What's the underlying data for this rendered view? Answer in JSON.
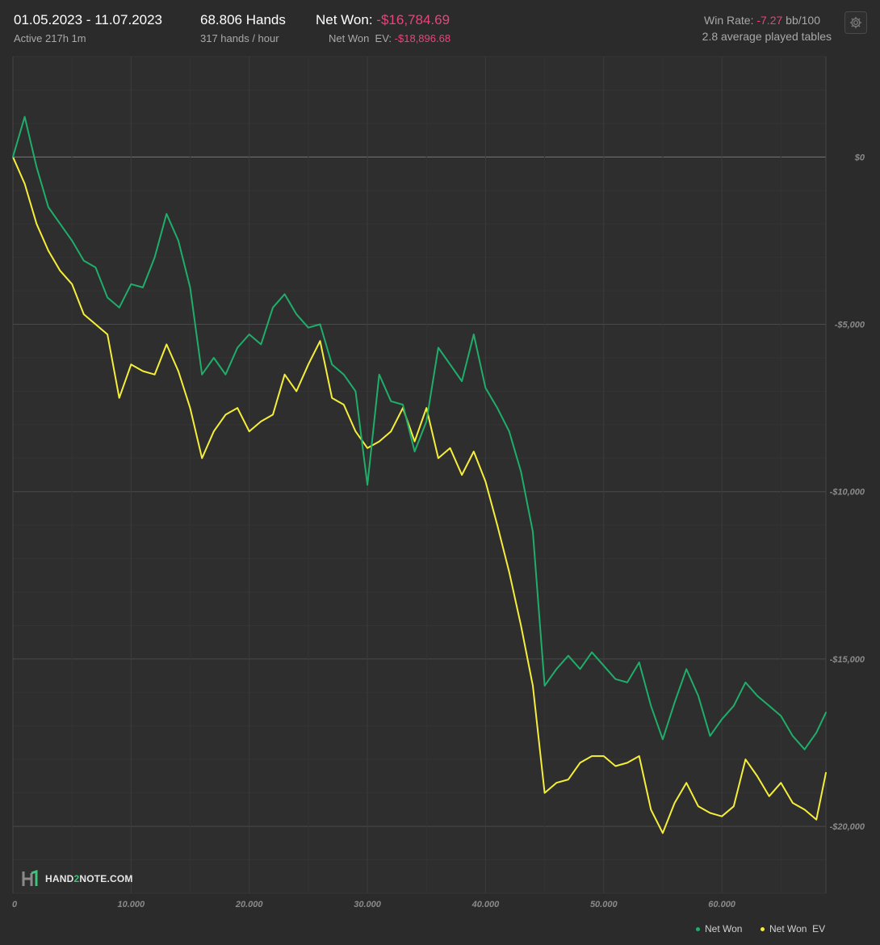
{
  "header": {
    "date_range": "01.05.2023 - 11.07.2023",
    "active_time": "Active 217h 1m",
    "hands": "68.806 Hands",
    "hands_per_hour": "317 hands / hour",
    "net_won_label": "Net Won:",
    "net_won_value": "-$16,784.69",
    "net_won_ev_label": "Net Won  EV:",
    "net_won_ev_value": "-$18,896.68",
    "win_rate_label": "Win Rate:",
    "win_rate_value": "-7.27",
    "win_rate_unit": "bb/100",
    "avg_tables": "2.8 average played tables"
  },
  "settings_icon": "gear-icon",
  "logo": {
    "brand_prefix": "HAND",
    "brand_two": "2",
    "brand_suffix": "NOTE.COM"
  },
  "colors": {
    "background": "#2b2b2b",
    "net_won": "#1fae6a",
    "net_won_ev": "#f5ee3a",
    "negative": "#e8457a",
    "grid": "#3a3a3a",
    "zero_line": "#777777"
  },
  "chart_data": {
    "type": "line",
    "xlim": [
      0,
      68806
    ],
    "ylim": [
      -22000,
      3000
    ],
    "x_ticks": [
      0,
      10000,
      20000,
      30000,
      40000,
      50000,
      60000
    ],
    "x_tick_labels": [
      "0",
      "10.000",
      "20.000",
      "30.000",
      "40.000",
      "50.000",
      "60.000"
    ],
    "y_ticks": [
      0,
      -5000,
      -10000,
      -15000,
      -20000
    ],
    "y_tick_labels": [
      "$0",
      "-$5,000",
      "-$10,000",
      "-$15,000",
      "-$20,000"
    ],
    "grid": true,
    "legend_position": "bottom-right",
    "x": [
      0,
      1000,
      2000,
      3000,
      4000,
      5000,
      6000,
      7000,
      8000,
      9000,
      10000,
      11000,
      12000,
      13000,
      14000,
      15000,
      16000,
      17000,
      18000,
      19000,
      20000,
      21000,
      22000,
      23000,
      24000,
      25000,
      26000,
      27000,
      28000,
      29000,
      30000,
      31000,
      32000,
      33000,
      34000,
      35000,
      36000,
      37000,
      38000,
      39000,
      40000,
      41000,
      42000,
      43000,
      44000,
      45000,
      46000,
      47000,
      48000,
      49000,
      50000,
      51000,
      52000,
      53000,
      54000,
      55000,
      56000,
      57000,
      58000,
      59000,
      60000,
      61000,
      62000,
      63000,
      64000,
      65000,
      66000,
      67000,
      68000,
      68806
    ],
    "series": [
      {
        "name": "Net Won",
        "values": [
          0,
          1200,
          -300,
          -1500,
          -2000,
          -2500,
          -3100,
          -3300,
          -4200,
          -4500,
          -3800,
          -3900,
          -3000,
          -1700,
          -2500,
          -3900,
          -6500,
          -6000,
          -6500,
          -5700,
          -5300,
          -5600,
          -4500,
          -4100,
          -4700,
          -5100,
          -5000,
          -6200,
          -6500,
          -7000,
          -9800,
          -6500,
          -7300,
          -7400,
          -8800,
          -7900,
          -5700,
          -6200,
          -6700,
          -5300,
          -6900,
          -7500,
          -8200,
          -9400,
          -11200,
          -15800,
          -15300,
          -14900,
          -15300,
          -14800,
          -15200,
          -15600,
          -15700,
          -15100,
          -16400,
          -17400,
          -16300,
          -15300,
          -16100,
          -17300,
          -16800,
          -16400,
          -15700,
          -16100,
          -16400,
          -16700,
          -17300,
          -17700,
          -17200,
          -16600
        ]
      },
      {
        "name": "Net Won  EV",
        "values": [
          0,
          -800,
          -2000,
          -2800,
          -3400,
          -3800,
          -4700,
          -5000,
          -5300,
          -7200,
          -6200,
          -6400,
          -6500,
          -5600,
          -6400,
          -7500,
          -9000,
          -8200,
          -7700,
          -7500,
          -8200,
          -7900,
          -7700,
          -6500,
          -7000,
          -6200,
          -5500,
          -7200,
          -7400,
          -8200,
          -8700,
          -8500,
          -8200,
          -7500,
          -8500,
          -7500,
          -9000,
          -8700,
          -9500,
          -8800,
          -9700,
          -11000,
          -12400,
          -14000,
          -15800,
          -19000,
          -18700,
          -18600,
          -18100,
          -17900,
          -17900,
          -18200,
          -18100,
          -17900,
          -19500,
          -20200,
          -19300,
          -18700,
          -19400,
          -19600,
          -19700,
          -19400,
          -18000,
          -18500,
          -19100,
          -18700,
          -19300,
          -19500,
          -19800,
          -18400
        ]
      }
    ]
  },
  "legend": [
    {
      "label": "Net Won",
      "color": "#1fae6a"
    },
    {
      "label": "Net Won  EV",
      "color": "#f5ee3a"
    }
  ]
}
